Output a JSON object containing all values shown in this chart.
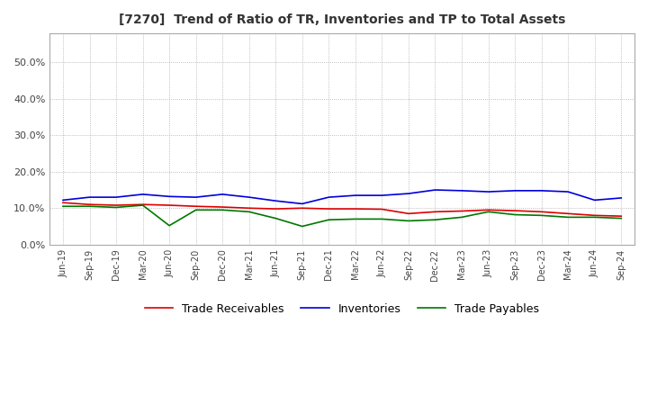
{
  "title": "[7270]  Trend of Ratio of TR, Inventories and TP to Total Assets",
  "title_fontsize": 10,
  "background_color": "#ffffff",
  "plot_background": "#ffffff",
  "grid_color": "#aaaaaa",
  "ylim": [
    0.0,
    0.58
  ],
  "yticks": [
    0.0,
    0.1,
    0.2,
    0.3,
    0.4,
    0.5
  ],
  "x_labels": [
    "Jun-19",
    "Sep-19",
    "Dec-19",
    "Mar-20",
    "Jun-20",
    "Sep-20",
    "Dec-20",
    "Mar-21",
    "Jun-21",
    "Sep-21",
    "Dec-21",
    "Mar-22",
    "Jun-22",
    "Sep-22",
    "Dec-22",
    "Mar-23",
    "Jun-23",
    "Sep-23",
    "Dec-23",
    "Mar-24",
    "Jun-24",
    "Sep-24"
  ],
  "trade_receivables": [
    0.115,
    0.11,
    0.108,
    0.11,
    0.108,
    0.105,
    0.103,
    0.1,
    0.098,
    0.1,
    0.098,
    0.098,
    0.097,
    0.085,
    0.09,
    0.092,
    0.095,
    0.093,
    0.09,
    0.085,
    0.08,
    0.078
  ],
  "inventories": [
    0.122,
    0.13,
    0.13,
    0.138,
    0.132,
    0.13,
    0.138,
    0.13,
    0.12,
    0.112,
    0.13,
    0.135,
    0.135,
    0.14,
    0.15,
    0.148,
    0.145,
    0.148,
    0.148,
    0.145,
    0.122,
    0.128
  ],
  "trade_payables": [
    0.105,
    0.105,
    0.102,
    0.108,
    0.052,
    0.095,
    0.095,
    0.09,
    0.072,
    0.05,
    0.068,
    0.07,
    0.07,
    0.065,
    0.068,
    0.075,
    0.09,
    0.082,
    0.08,
    0.075,
    0.075,
    0.072
  ],
  "tr_color": "#dd0000",
  "inv_color": "#0000dd",
  "tp_color": "#007700",
  "legend_labels": [
    "Trade Receivables",
    "Inventories",
    "Trade Payables"
  ],
  "line_width": 1.2
}
